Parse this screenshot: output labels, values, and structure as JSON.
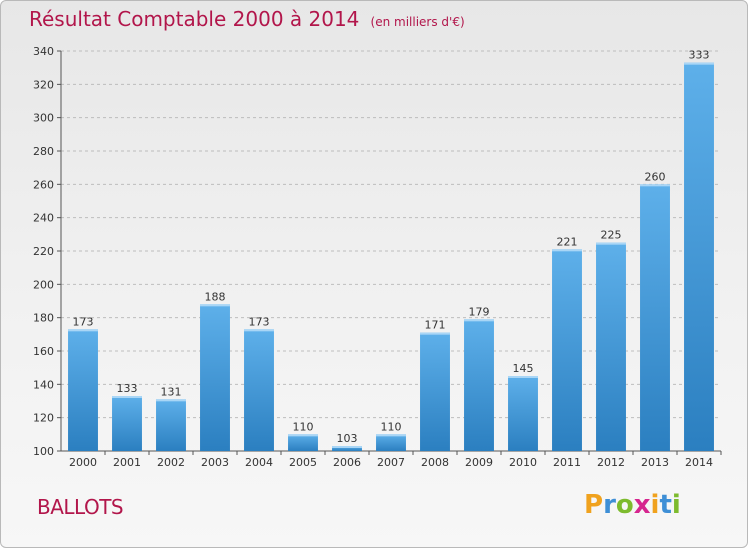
{
  "header": {
    "title": "Résultat Comptable 2000 à 2014",
    "subtitle": "(en milliers d'€)"
  },
  "commune": "BALLOTS",
  "logo": {
    "text": "Proxiti",
    "letters": [
      {
        "char": "P",
        "color": "#f0a21e"
      },
      {
        "char": "r",
        "color": "#3e8fd6"
      },
      {
        "char": "o",
        "color": "#7dbb2e"
      },
      {
        "char": "x",
        "color": "#d6268f"
      },
      {
        "char": "i",
        "color": "#f0a21e"
      },
      {
        "char": "t",
        "color": "#3e8fd6"
      },
      {
        "char": "i",
        "color": "#7dbb2e"
      }
    ]
  },
  "colors": {
    "bar_light": "#5eb0ea",
    "bar_dark": "#2b7fc0",
    "grid": "#bdbdbd",
    "title": "#b2164b"
  },
  "chart_data": {
    "type": "bar",
    "title": "Résultat Comptable 2000 à 2014",
    "subtitle": "(en milliers d'€)",
    "xlabel": "",
    "ylabel": "",
    "ylim": [
      100,
      340
    ],
    "yticks": [
      100,
      120,
      140,
      160,
      180,
      200,
      220,
      240,
      260,
      280,
      300,
      320,
      340
    ],
    "grid": true,
    "categories": [
      "2000",
      "2001",
      "2002",
      "2003",
      "2004",
      "2005",
      "2006",
      "2007",
      "2008",
      "2009",
      "2010",
      "2011",
      "2012",
      "2013",
      "2014"
    ],
    "values": [
      173,
      133,
      131,
      188,
      173,
      110,
      103,
      110,
      171,
      179,
      145,
      221,
      225,
      260,
      333
    ]
  }
}
